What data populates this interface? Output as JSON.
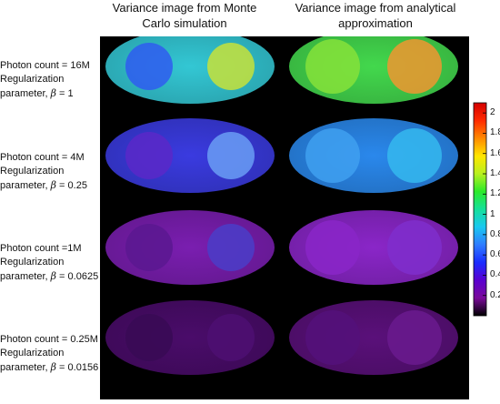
{
  "columns": [
    {
      "line1": "Variance image from Monte",
      "line2": "Carlo simulation"
    },
    {
      "line1": "Variance image from analytical",
      "line2": "approximation"
    }
  ],
  "rows": [
    {
      "photon": "Photon count = 16M",
      "reg": "Regularization",
      "param_prefix": "parameter, ",
      "beta_symbol": "β",
      "beta_value": " = 1",
      "mc_bg": "#33c7d4",
      "mc_left": "#2f5cf0",
      "mc_right": "#c7e23a",
      "an_bg": "#43d84d",
      "an_left": "#86e23a",
      "an_right": "#f09630"
    },
    {
      "photon": "Photon count = 4M",
      "reg": "Regularization",
      "param_prefix": "parameter, ",
      "beta_symbol": "β",
      "beta_value": " = 0.25",
      "mc_bg": "#3a3be0",
      "mc_left": "#5a28c8",
      "mc_right": "#6a9ef5",
      "an_bg": "#2a88ec",
      "an_left": "#3fa0f0",
      "an_right": "#35b8ee"
    },
    {
      "photon": "Photon count =1M",
      "reg": "Regularization",
      "param_prefix": "parameter, ",
      "beta_symbol": "β",
      "beta_value": " = 0.0625",
      "mc_bg": "#7a1eb0",
      "mc_left": "#5a1890",
      "mc_right": "#4a3dc8",
      "an_bg": "#8a26c8",
      "an_left": "#8a26c8",
      "an_right": "#7f2ecd"
    },
    {
      "photon": "Photon count = 0.25M",
      "reg": "Regularization",
      "param_prefix": "parameter, ",
      "beta_symbol": "β",
      "beta_value": " = 0.0156",
      "mc_bg": "#4a0c6a",
      "mc_left": "#380a55",
      "mc_right": "#4e0f72",
      "an_bg": "#5a107a",
      "an_left": "#54107a",
      "an_right": "#6a1a8e"
    }
  ],
  "colorbar": {
    "ticks": [
      "2",
      "1.8",
      "1.6",
      "1.4",
      "1.2",
      "1",
      "0.8",
      "0.6",
      "0.4",
      "0.2"
    ],
    "tick_values": [
      2,
      1.8,
      1.6,
      1.4,
      1.2,
      1,
      0.8,
      0.6,
      0.4,
      0.2
    ],
    "range": [
      0,
      2.1
    ],
    "colormap": [
      "#000000",
      "#7a0a9a",
      "#5a00d0",
      "#1a2cff",
      "#2f7cff",
      "#19c8f0",
      "#15e09a",
      "#2bea2b",
      "#b8f020",
      "#ffe600",
      "#ff8a00",
      "#ff2a00",
      "#d40000"
    ]
  }
}
